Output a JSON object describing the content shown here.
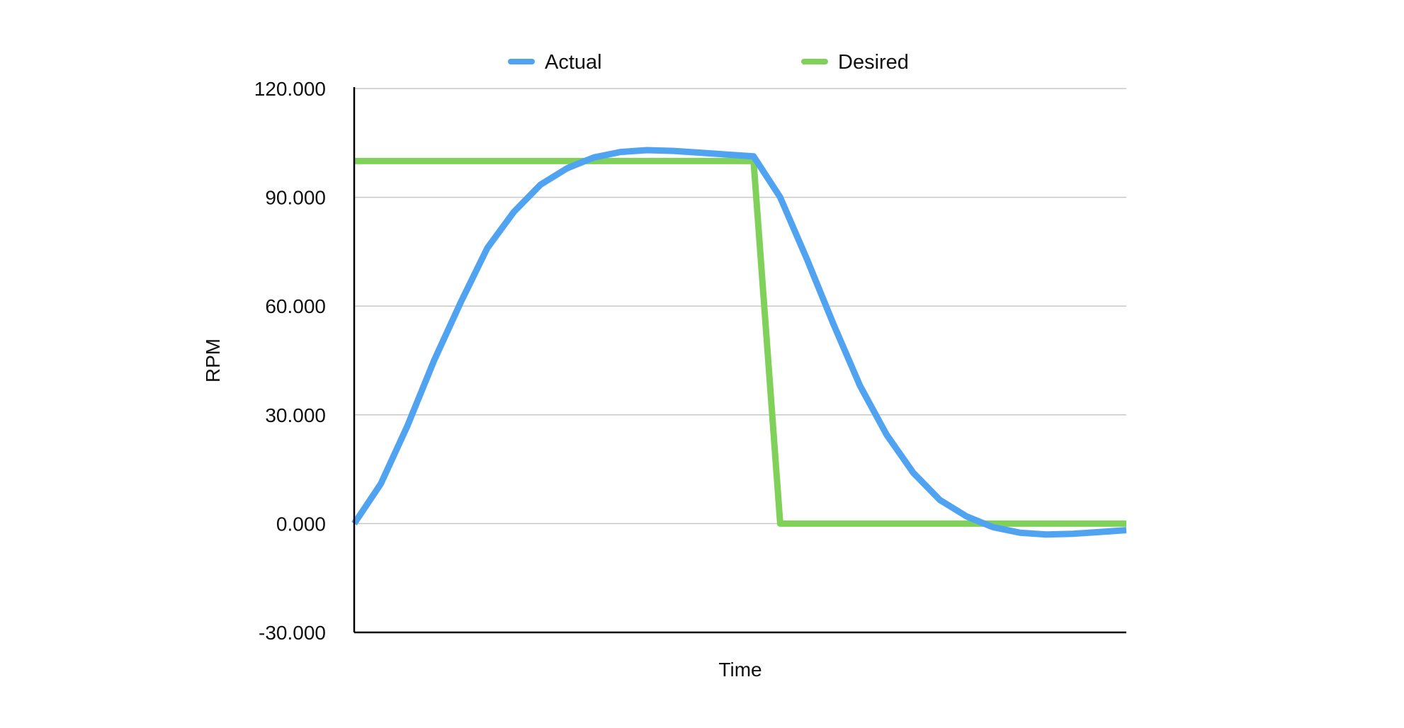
{
  "chart_data": {
    "type": "line",
    "title": "",
    "xlabel": "Time",
    "ylabel": "RPM",
    "ylim": [
      -30,
      120
    ],
    "yticks": [
      -30,
      0,
      30,
      60,
      90,
      120
    ],
    "ytick_labels": [
      "-30.000",
      "0.000",
      "30.000",
      "60.000",
      "90.000",
      "120.000"
    ],
    "grid": true,
    "legend_position": "top",
    "x": [
      0,
      1,
      2,
      3,
      4,
      5,
      6,
      7,
      8,
      9,
      10,
      11,
      12,
      13,
      14,
      15,
      16,
      17,
      18,
      19,
      20,
      21,
      22,
      23,
      24,
      25,
      26,
      27,
      28,
      29
    ],
    "series": [
      {
        "name": "Actual",
        "color": "#4fa3f0",
        "values": [
          0,
          11,
          27,
          45,
          61,
          76,
          86,
          93.5,
          98,
          101,
          102.5,
          103,
          102.8,
          102.3,
          101.8,
          101.3,
          90,
          73,
          55,
          38,
          24.5,
          14,
          6.5,
          2,
          -1,
          -2.5,
          -3,
          -2.8,
          -2.3,
          -1.8
        ]
      },
      {
        "name": "Desired",
        "color": "#7fd15a",
        "values": [
          100,
          100,
          100,
          100,
          100,
          100,
          100,
          100,
          100,
          100,
          100,
          100,
          100,
          100,
          100,
          100,
          0,
          0,
          0,
          0,
          0,
          0,
          0,
          0,
          0,
          0,
          0,
          0,
          0,
          0
        ]
      }
    ]
  }
}
